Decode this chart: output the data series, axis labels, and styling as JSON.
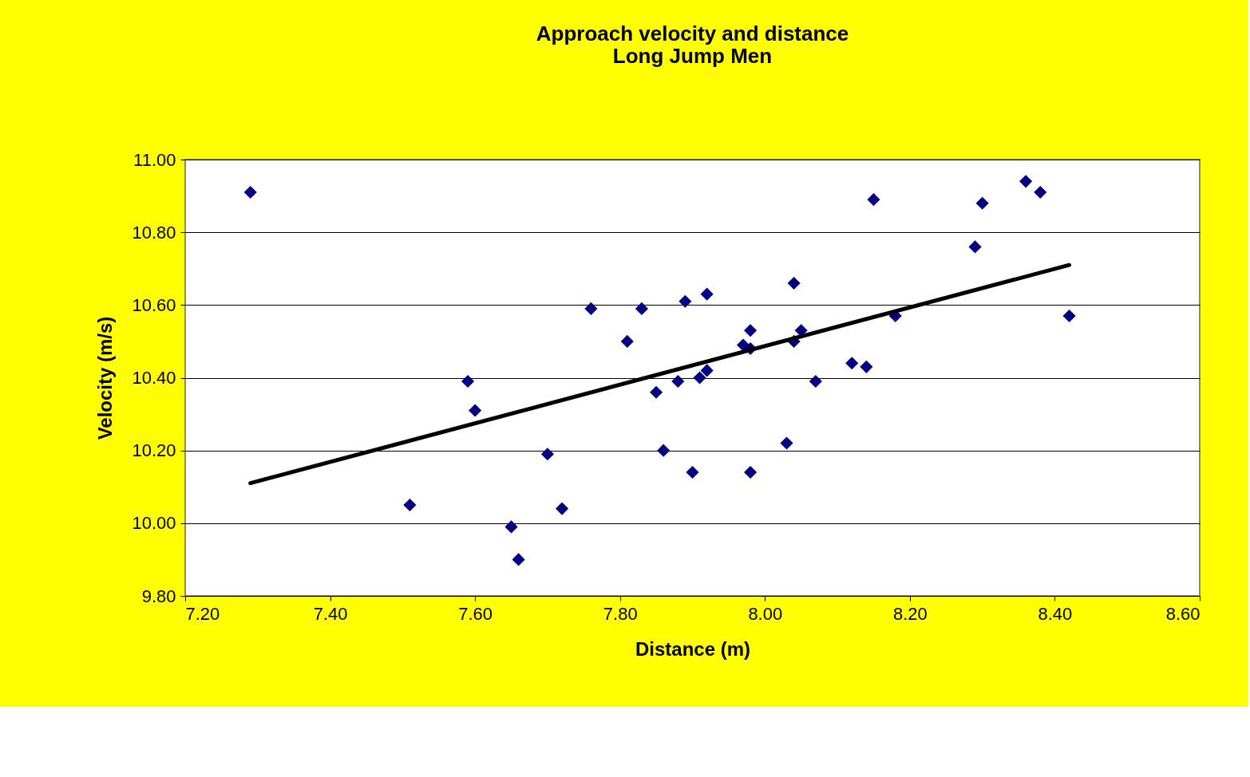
{
  "chart_data": {
    "type": "scatter",
    "title": "Approach velocity and distance\nLong Jump Men",
    "xlabel": "Distance (m)",
    "ylabel": "Velocity (m/s)",
    "xlim": [
      7.2,
      8.6
    ],
    "ylim": [
      9.8,
      11.0
    ],
    "xticks": [
      {
        "value": 7.2,
        "label": "7.20"
      },
      {
        "value": 7.4,
        "label": "7.40"
      },
      {
        "value": 7.6,
        "label": "7.60"
      },
      {
        "value": 7.8,
        "label": "7.80"
      },
      {
        "value": 8.0,
        "label": "8.00"
      },
      {
        "value": 8.2,
        "label": "8.20"
      },
      {
        "value": 8.4,
        "label": "8.40"
      },
      {
        "value": 8.6,
        "label": "8.60"
      }
    ],
    "yticks": [
      {
        "value": 9.8,
        "label": "9.80"
      },
      {
        "value": 10.0,
        "label": "10.00"
      },
      {
        "value": 10.2,
        "label": "10.20"
      },
      {
        "value": 10.4,
        "label": "10.40"
      },
      {
        "value": 10.6,
        "label": "10.60"
      },
      {
        "value": 10.8,
        "label": "10.80"
      },
      {
        "value": 11.0,
        "label": "11.00"
      }
    ],
    "grid": "y",
    "series": [
      {
        "marker": "diamond",
        "color": "#000080",
        "x": [
          7.29,
          7.51,
          7.59,
          7.6,
          7.65,
          7.66,
          7.7,
          7.72,
          7.76,
          7.81,
          7.83,
          7.85,
          7.86,
          7.88,
          7.89,
          7.9,
          7.91,
          7.92,
          7.92,
          7.97,
          7.98,
          7.98,
          7.98,
          8.03,
          8.04,
          8.04,
          8.05,
          8.07,
          8.12,
          8.14,
          8.15,
          8.18,
          8.29,
          8.3,
          8.36,
          8.38,
          8.42
        ],
        "values": [
          10.91,
          10.05,
          10.39,
          10.31,
          9.99,
          9.9,
          10.19,
          10.04,
          10.59,
          10.5,
          10.59,
          10.36,
          10.2,
          10.39,
          10.61,
          10.14,
          10.4,
          10.42,
          10.63,
          10.49,
          10.53,
          10.48,
          10.14,
          10.22,
          10.66,
          10.5,
          10.53,
          10.39,
          10.44,
          10.43,
          10.89,
          10.57,
          10.76,
          10.88,
          10.94,
          10.91,
          10.57
        ]
      },
      {
        "type": "line",
        "marker": "none",
        "line_style": "solid",
        "color": "#000000",
        "x": [
          7.29,
          8.42
        ],
        "values": [
          10.11,
          10.71
        ]
      }
    ]
  }
}
